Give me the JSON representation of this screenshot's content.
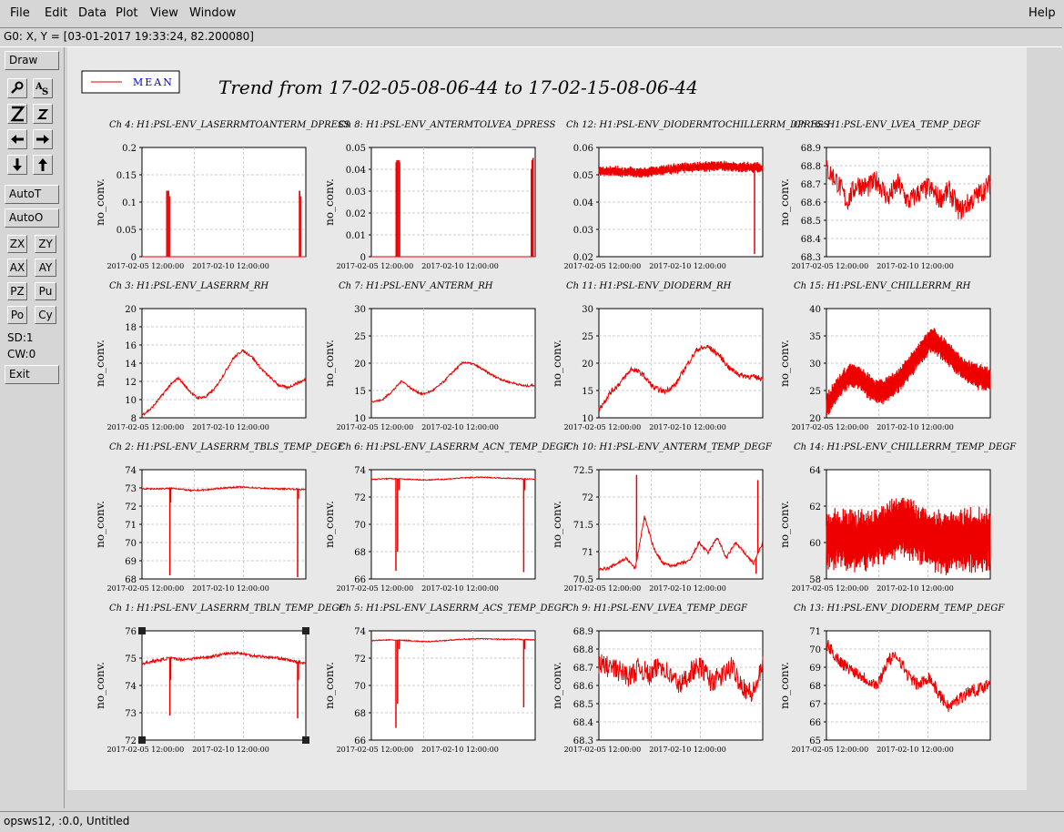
{
  "menus": {
    "file": "File",
    "edit": "Edit",
    "data": "Data",
    "plot": "Plot",
    "view": "View",
    "window": "Window",
    "help": "Help"
  },
  "coord_text": "G0: X, Y = [03-01-2017 19:33:24, 82.200080]",
  "toolbar": {
    "draw": "Draw",
    "autot": "AutoT",
    "autoo": "AutoO",
    "zx": "ZX",
    "zy": "ZY",
    "ax": "AX",
    "ay": "AY",
    "pz": "PZ",
    "pu": "Pu",
    "po": "Po",
    "cy": "Cy",
    "sd": "SD:1",
    "cw": "CW:0",
    "exit": "Exit",
    "icons": [
      "magnifier-icon",
      "text-scale-icon",
      "zoom-out-big-icon",
      "zoom-in-small-icon",
      "arrow-left-icon",
      "arrow-right-icon",
      "arrow-down-icon",
      "arrow-up-icon"
    ]
  },
  "legend": {
    "label": "MEAN",
    "color": "#dd0000"
  },
  "main_title": "Trend from 17-02-05-08-06-44 to 17-02-15-08-06-44",
  "status_text": "opsws12, :0.0, Untitled",
  "colors": {
    "trace": "#ee0000",
    "grid": "#cccccc",
    "label_blue": "#0000cc"
  },
  "chart_data": [
    {
      "type": "line",
      "title": "Ch 4: H1:PSL-ENV_LASERRMTOANTERM_DPRESS",
      "ylabel": "no_conv.",
      "yticks": [
        "0",
        "0.05",
        "0.1",
        "0.15",
        "0.2"
      ],
      "ylim": [
        0,
        0.2
      ],
      "xticks": [
        "2017-02-05 12:00:00",
        "2017-02-10 12:00:00"
      ],
      "kind": "spikes",
      "base": 0,
      "spikes": [
        [
          0.15,
          0.12
        ],
        [
          0.16,
          0.12
        ],
        [
          0.165,
          0.11
        ],
        [
          0.96,
          0.12
        ],
        [
          0.965,
          0.11
        ]
      ]
    },
    {
      "type": "line",
      "title": "Ch 8: H1:PSL-ENV_ANTERMTOLVEA_DPRESS",
      "ylabel": "no_conv.",
      "yticks": [
        "0",
        "0.01",
        "0.02",
        "0.03",
        "0.04",
        "0.05"
      ],
      "ylim": [
        0,
        0.05
      ],
      "xticks": [
        "2017-02-05 12:00:00",
        "2017-02-10 12:00:00"
      ],
      "kind": "spikes",
      "base": 0,
      "spikes": [
        [
          0.15,
          0.043
        ],
        [
          0.155,
          0.044
        ],
        [
          0.165,
          0.044
        ],
        [
          0.17,
          0.043
        ],
        [
          0.975,
          0.04
        ],
        [
          0.98,
          0.044
        ],
        [
          0.985,
          0.045
        ]
      ]
    },
    {
      "type": "line",
      "title": "Ch 12: H1:PSL-ENV_DIODERMTOCHILLERRM_DPRESS",
      "ylabel": "",
      "yticks": [
        "0.02",
        "0.03",
        "0.04",
        "0.05",
        "0.06"
      ],
      "ylim": [
        0.02,
        0.06
      ],
      "xticks": [
        "2017-02-05 12:00:00",
        "2017-02-10 12:00:00"
      ],
      "kind": "band",
      "base": 0.052,
      "amp": 0.0015,
      "noise": 0.0012,
      "drift": [
        0.0515,
        0.0512,
        0.0508,
        0.0515,
        0.0525,
        0.053,
        0.0532,
        0.0528,
        0.0525
      ],
      "dips": [
        [
          0.95,
          0.021
        ]
      ]
    },
    {
      "type": "line",
      "title": "Ch 16: H1:PSL-ENV_LVEA_TEMP_DEGF",
      "ylabel": "no_conv.",
      "yticks": [
        "68.3",
        "68.4",
        "68.5",
        "68.6",
        "68.7",
        "68.8",
        "68.9"
      ],
      "ylim": [
        68.3,
        68.9
      ],
      "xticks": [
        "2017-02-05 12:00:00",
        "2017-02-10 12:00:00"
      ],
      "kind": "noisy",
      "noise": 0.06,
      "drift": [
        68.78,
        68.72,
        68.6,
        68.7,
        68.68,
        68.72,
        68.62,
        68.7,
        68.6,
        68.65,
        68.68,
        68.62,
        68.66,
        68.55,
        68.6,
        68.65,
        68.7
      ]
    },
    {
      "type": "line",
      "title": "Ch 3: H1:PSL-ENV_LASERRM_RH",
      "ylabel": "no_conv.",
      "yticks": [
        "8",
        "10",
        "12",
        "14",
        "16",
        "18",
        "20"
      ],
      "ylim": [
        8,
        20
      ],
      "xticks": [
        "2017-02-05 12:00:00",
        "2017-02-10 12:00:00"
      ],
      "kind": "smooth",
      "noise": 0.15,
      "drift": [
        8.3,
        9,
        10.2,
        11.5,
        12.4,
        11.2,
        10.2,
        10.3,
        11.2,
        12.8,
        14.5,
        15.4,
        14.8,
        13.5,
        12.5,
        11.6,
        11.3,
        11.8,
        12.2
      ]
    },
    {
      "type": "line",
      "title": "Ch 7: H1:PSL-ENV_ANTERM_RH",
      "ylabel": "no_conv.",
      "yticks": [
        "10",
        "15",
        "20",
        "25",
        "30"
      ],
      "ylim": [
        10,
        30
      ],
      "xticks": [
        "2017-02-05 12:00:00",
        "2017-02-10 12:00:00"
      ],
      "kind": "smooth",
      "noise": 0.2,
      "drift": [
        13,
        13.2,
        14.8,
        16.8,
        15.2,
        14.3,
        15,
        16.5,
        18.5,
        20.2,
        19.8,
        18.7,
        17.6,
        16.8,
        16.3,
        15.8,
        16
      ]
    },
    {
      "type": "line",
      "title": "Ch 11: H1:PSL-ENV_DIODERM_RH",
      "ylabel": "no_conv.",
      "yticks": [
        "10",
        "15",
        "20",
        "25",
        "30"
      ],
      "ylim": [
        10,
        30
      ],
      "xticks": [
        "2017-02-05 12:00:00",
        "2017-02-10 12:00:00"
      ],
      "kind": "smooth",
      "noise": 0.5,
      "drift": [
        11.5,
        14.5,
        16.5,
        19,
        18,
        15.5,
        14.8,
        16,
        19.5,
        22.5,
        23,
        21.5,
        19,
        17.8,
        17.5,
        17.2
      ]
    },
    {
      "type": "line",
      "title": "Ch 15: H1:PSL-ENV_CHILLERRM_RH",
      "ylabel": "no_conv.",
      "yticks": [
        "20",
        "25",
        "30",
        "35",
        "40"
      ],
      "ylim": [
        20,
        40
      ],
      "xticks": [
        "2017-02-05 12:00:00",
        "2017-02-10 12:00:00"
      ],
      "kind": "band",
      "amp": 2.2,
      "noise": 0.6,
      "drift": [
        22,
        25.5,
        28,
        27,
        25,
        24.8,
        26.5,
        29,
        32,
        34.5,
        32.5,
        30.5,
        28.5,
        27.5,
        27
      ]
    },
    {
      "type": "line",
      "title": "Ch 2: H1:PSL-ENV_LASERRM_TBLS_TEMP_DEGF",
      "ylabel": "no_conv.",
      "yticks": [
        "68",
        "69",
        "70",
        "71",
        "72",
        "73",
        "74"
      ],
      "ylim": [
        68,
        74
      ],
      "xticks": [
        "2017-02-05 12:00:00",
        "2017-02-10 12:00:00"
      ],
      "kind": "flat",
      "noise": 0.04,
      "drift": [
        72.95,
        72.95,
        72.98,
        72.85,
        72.9,
        73,
        73.05,
        73.0,
        72.95,
        72.95,
        72.9
      ],
      "dips": [
        [
          0.17,
          68.2
        ],
        [
          0.175,
          72.2
        ],
        [
          0.95,
          68.1
        ],
        [
          0.955,
          72.4
        ]
      ]
    },
    {
      "type": "line",
      "title": "Ch 6: H1:PSL-ENV_LASERRM_ACN_TEMP_DEGF",
      "ylabel": "no_conv.",
      "yticks": [
        "66",
        "68",
        "70",
        "72",
        "74"
      ],
      "ylim": [
        66,
        74
      ],
      "xticks": [
        "2017-02-05 12:00:00",
        "2017-02-10 12:00:00"
      ],
      "kind": "flat",
      "noise": 0.04,
      "drift": [
        73.3,
        73.35,
        73.3,
        73.25,
        73.3,
        73.4,
        73.45,
        73.4,
        73.35,
        73.3
      ],
      "dips": [
        [
          0.15,
          66.6
        ],
        [
          0.16,
          68
        ],
        [
          0.17,
          72.5
        ],
        [
          0.93,
          66.5
        ],
        [
          0.935,
          72.5
        ]
      ]
    },
    {
      "type": "line",
      "title": "Ch 10: H1:PSL-ENV_ANTERM_TEMP_DEGF",
      "ylabel": "no_conv.",
      "yticks": [
        "70.5",
        "71",
        "71.5",
        "72",
        "72.5"
      ],
      "ylim": [
        70.4,
        72.5
      ],
      "xticks": [
        "2017-02-05 12:00:00",
        "2017-02-10 12:00:00"
      ],
      "kind": "smooth",
      "noise": 0.03,
      "drift": [
        70.6,
        70.6,
        70.7,
        70.8,
        70.6,
        71.6,
        71,
        70.7,
        70.65,
        70.7,
        70.75,
        71.1,
        70.9,
        71.2,
        70.8,
        71.1,
        70.9,
        70.7,
        71.1
      ],
      "dips": [
        [
          0.23,
          72.4
        ],
        [
          0.97,
          72.3
        ],
        [
          0.96,
          70.5
        ]
      ]
    },
    {
      "type": "line",
      "title": "Ch 14: H1:PSL-ENV_CHILLERRM_TEMP_DEGF",
      "ylabel": "no_conv.",
      "yticks": [
        "58",
        "60",
        "62",
        "64"
      ],
      "ylim": [
        57.5,
        64.5
      ],
      "xticks": [
        "2017-02-05 12:00:00",
        "2017-02-10 12:00:00"
      ],
      "kind": "band",
      "amp": 1.8,
      "noise": 0.9,
      "drift": [
        60,
        60,
        60,
        60,
        60.5,
        61,
        60.5,
        60,
        59.8,
        60,
        60,
        60
      ]
    },
    {
      "type": "line",
      "title": "Ch 1: H1:PSL-ENV_LASERRM_TBLN_TEMP_DEGF",
      "ylabel": "no_conv.",
      "yticks": [
        "72",
        "73",
        "74",
        "75",
        "76"
      ],
      "ylim": [
        72,
        76
      ],
      "xticks": [
        "2017-02-05 12:00:00",
        "2017-02-10 12:00:00"
      ],
      "kind": "flat",
      "noise": 0.05,
      "drift": [
        74.8,
        74.9,
        75,
        74.95,
        75,
        75.05,
        75.15,
        75.2,
        75.1,
        75.05,
        75,
        74.9,
        74.8
      ],
      "dips": [
        [
          0.17,
          72.9
        ],
        [
          0.175,
          74.2
        ],
        [
          0.95,
          72.8
        ],
        [
          0.955,
          74.2
        ]
      ]
    },
    {
      "type": "line",
      "title": "Ch 5: H1:PSL-ENV_LASERRM_ACS_TEMP_DEGF",
      "ylabel": "no_conv.",
      "yticks": [
        "66",
        "68",
        "70",
        "72",
        "74"
      ],
      "ylim": [
        65,
        74
      ],
      "xticks": [
        "2017-02-05 12:00:00",
        "2017-02-10 12:00:00"
      ],
      "kind": "flat",
      "noise": 0.04,
      "drift": [
        73.2,
        73.25,
        73.2,
        73.1,
        73.2,
        73.3,
        73.35,
        73.3,
        73.3,
        73.25
      ],
      "dips": [
        [
          0.15,
          66
        ],
        [
          0.16,
          68
        ],
        [
          0.17,
          72.5
        ],
        [
          0.93,
          67.7
        ],
        [
          0.935,
          72.5
        ]
      ]
    },
    {
      "type": "line",
      "title": "Ch 9: H1:PSL-ENV_LVEA_TEMP_DEGF",
      "ylabel": "no_conv.",
      "yticks": [
        "68.3",
        "68.4",
        "68.5",
        "68.6",
        "68.7",
        "68.8",
        "68.9"
      ],
      "ylim": [
        68.3,
        68.9
      ],
      "xticks": [
        "2017-02-05 12:00:00",
        "2017-02-10 12:00:00"
      ],
      "kind": "noisy",
      "noise": 0.06,
      "drift": [
        68.72,
        68.7,
        68.68,
        68.65,
        68.7,
        68.65,
        68.72,
        68.65,
        68.6,
        68.68,
        68.7,
        68.62,
        68.65,
        68.7,
        68.6,
        68.55,
        68.7
      ]
    },
    {
      "type": "line",
      "title": "Ch 13: H1:PSL-ENV_DIODERM_TEMP_DEGF",
      "ylabel": "no_conv.",
      "yticks": [
        "65",
        "66",
        "67",
        "68",
        "69",
        "70",
        "71"
      ],
      "ylim": [
        65,
        71
      ],
      "xticks": [
        "2017-02-05 12:00:00",
        "2017-02-10 12:00:00"
      ],
      "kind": "noisy",
      "noise": 0.35,
      "drift": [
        70.3,
        69.5,
        69,
        68.7,
        68.3,
        68,
        69.4,
        69.6,
        68.5,
        68,
        68.5,
        67.5,
        66.8,
        67.3,
        67.7,
        67.8,
        68.2
      ]
    }
  ]
}
